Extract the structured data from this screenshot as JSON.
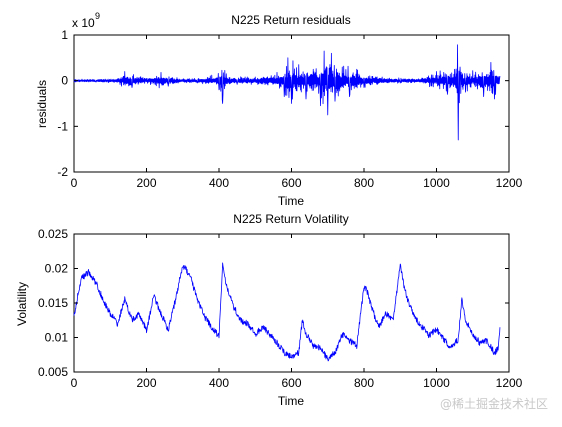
{
  "colors": {
    "series": "#0000ff",
    "axes": "#000000",
    "background": "#ffffff",
    "watermark": "#c8c8c8"
  },
  "watermark": "@稀土掘金技术社区",
  "chart_data": [
    {
      "type": "line",
      "title": "N225  Return residuals",
      "xlabel": "Time",
      "ylabel": "residuals",
      "exponent_label": "x 10",
      "exponent_power": "9",
      "xlim": [
        0,
        1200
      ],
      "ylim": [
        -2,
        1
      ],
      "xticks": [
        "0",
        "200",
        "400",
        "600",
        "800",
        "1000",
        "1200"
      ],
      "yticks": [
        "-2",
        "-1",
        "0",
        "1"
      ],
      "x_range": [
        0,
        1175
      ],
      "series": [
        {
          "x": [
            0,
            60,
            120,
            140,
            160,
            200,
            240,
            260,
            300,
            340,
            380,
            400,
            410,
            420,
            450,
            500,
            560,
            580,
            590,
            600,
            620,
            640,
            660,
            680,
            690,
            700,
            710,
            720,
            740,
            760,
            780,
            800,
            850,
            900,
            950,
            1000,
            1030,
            1050,
            1060,
            1065,
            1080,
            1100,
            1130,
            1150,
            1160,
            1175
          ],
          "y": [
            0.02,
            -0.02,
            0.04,
            0.2,
            -0.15,
            0.05,
            0.18,
            -0.12,
            0.03,
            -0.05,
            0.12,
            -0.2,
            -0.5,
            0.15,
            -0.08,
            0.08,
            0.18,
            -0.35,
            0.5,
            -0.5,
            0.35,
            -0.4,
            0.25,
            -0.55,
            0.65,
            -0.75,
            0.6,
            -0.45,
            0.3,
            -0.35,
            0.25,
            -0.15,
            0.08,
            -0.05,
            0.04,
            0.2,
            -0.3,
            0.25,
            -1.3,
            0.3,
            -0.25,
            0.22,
            -0.35,
            0.4,
            -0.4,
            0.1
          ]
        }
      ]
    },
    {
      "type": "line",
      "title": "N225 Return Volatility",
      "xlabel": "Time",
      "ylabel": "Volatility",
      "xlim": [
        0,
        1200
      ],
      "ylim": [
        0.005,
        0.025
      ],
      "xticks": [
        "0",
        "200",
        "400",
        "600",
        "800",
        "1000",
        "1200"
      ],
      "yticks": [
        "0.005",
        "0.01",
        "0.015",
        "0.02",
        "0.025"
      ],
      "series": [
        {
          "x": [
            0,
            10,
            20,
            40,
            60,
            80,
            100,
            120,
            140,
            160,
            180,
            200,
            220,
            240,
            260,
            280,
            300,
            320,
            340,
            360,
            380,
            400,
            410,
            420,
            440,
            460,
            480,
            500,
            520,
            540,
            560,
            580,
            600,
            620,
            630,
            640,
            660,
            680,
            700,
            720,
            740,
            760,
            780,
            800,
            810,
            820,
            840,
            860,
            880,
            900,
            910,
            920,
            940,
            960,
            980,
            1000,
            1020,
            1040,
            1060,
            1070,
            1080,
            1100,
            1120,
            1140,
            1160,
            1170,
            1175
          ],
          "y": [
            0.013,
            0.016,
            0.0185,
            0.0195,
            0.018,
            0.0155,
            0.0135,
            0.012,
            0.0155,
            0.0125,
            0.0135,
            0.011,
            0.016,
            0.0135,
            0.011,
            0.0155,
            0.0205,
            0.019,
            0.0155,
            0.013,
            0.0115,
            0.0102,
            0.0205,
            0.0175,
            0.0145,
            0.0125,
            0.012,
            0.0105,
            0.0115,
            0.0105,
            0.0092,
            0.0078,
            0.0072,
            0.0078,
            0.0125,
            0.0105,
            0.0088,
            0.0085,
            0.0068,
            0.0078,
            0.0105,
            0.0095,
            0.0088,
            0.0175,
            0.0165,
            0.0145,
            0.0115,
            0.0135,
            0.0125,
            0.0205,
            0.0175,
            0.0155,
            0.013,
            0.0115,
            0.0103,
            0.0112,
            0.0098,
            0.0085,
            0.0098,
            0.0155,
            0.0125,
            0.0105,
            0.0092,
            0.0095,
            0.0078,
            0.0085,
            0.0115
          ]
        }
      ]
    }
  ]
}
